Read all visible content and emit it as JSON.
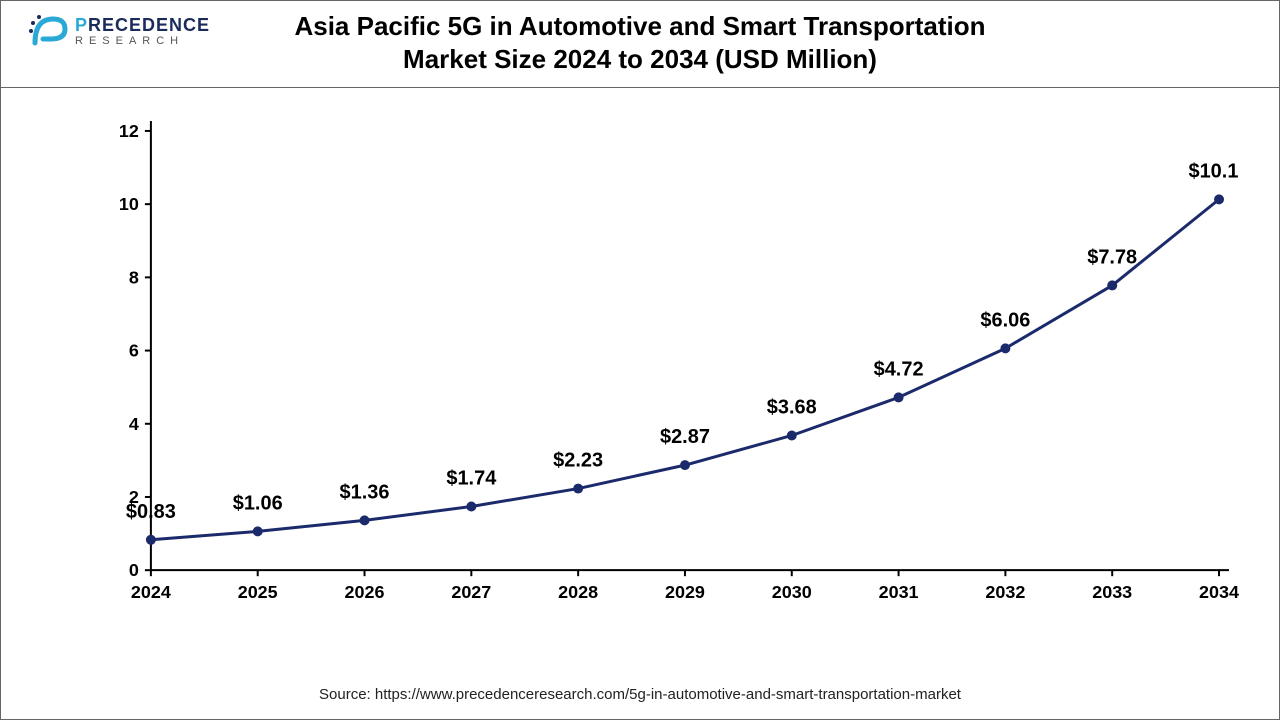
{
  "logo": {
    "brand_prefix": "P",
    "brand_rest": "RECEDENCE",
    "sub": "RESEARCH",
    "mark_color": "#2aa8d6",
    "text_color": "#1a2a5a"
  },
  "title": {
    "line1": "Asia Pacific 5G in Automotive and Smart Transportation",
    "line2": "Market Size 2024  to 2034 (USD Million)",
    "fontsize": 26,
    "weight": 700,
    "color": "#000000"
  },
  "chart": {
    "type": "line",
    "categories": [
      "2024",
      "2025",
      "2026",
      "2027",
      "2028",
      "2029",
      "2030",
      "2031",
      "2032",
      "2033",
      "2034"
    ],
    "values": [
      0.83,
      1.06,
      1.36,
      1.74,
      2.23,
      2.87,
      3.68,
      4.72,
      6.06,
      7.78,
      10.13
    ],
    "data_labels": [
      "$0.83",
      "$1.06",
      "$1.36",
      "$1.74",
      "$2.23",
      "$2.87",
      "$3.68",
      "$4.72",
      "$6.06",
      "$7.78",
      "$10.13"
    ],
    "ylim": [
      0,
      12
    ],
    "yticks": [
      0,
      2,
      4,
      6,
      8,
      10,
      12
    ],
    "line_color": "#1b2a6b",
    "line_width": 3,
    "marker_color": "#1b2a6b",
    "marker_radius": 5,
    "axis_color": "#000000",
    "axis_width": 2,
    "tick_font_size": 18,
    "tick_font_weight": 700,
    "data_label_fontsize": 20,
    "data_label_fontweight": 700,
    "background_color": "#ffffff",
    "grid": false
  },
  "source": {
    "label": "Source: https://www.precedenceresearch.com/5g-in-automotive-and-smart-transportation-market",
    "fontsize": 15,
    "color": "#222222"
  }
}
